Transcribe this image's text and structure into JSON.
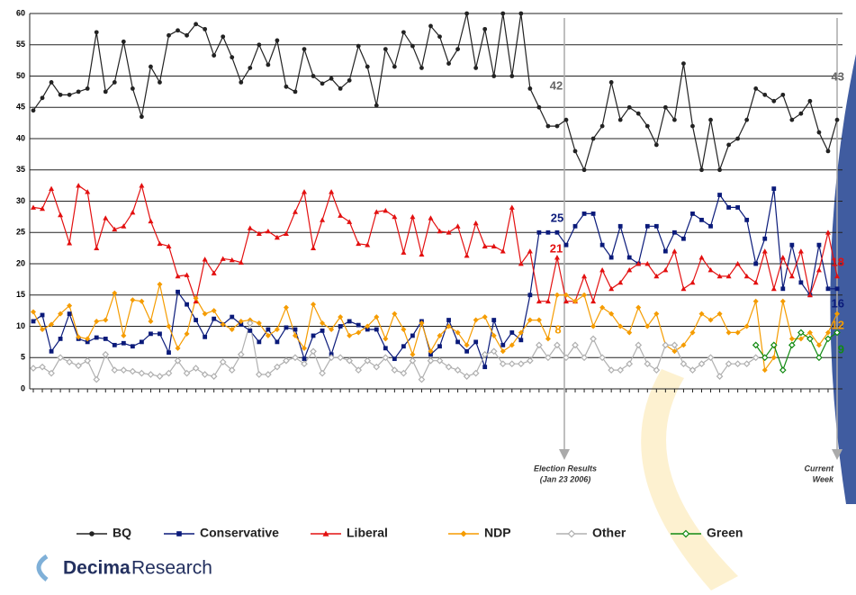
{
  "chart_data": {
    "type": "line",
    "categories": [
      null,
      null,
      null,
      null,
      null,
      null,
      null,
      null,
      null,
      null,
      null,
      null,
      null,
      null,
      null,
      null,
      null,
      null,
      null,
      null,
      null,
      null,
      null,
      null,
      null,
      null,
      null,
      null,
      null,
      null,
      null,
      null,
      null,
      null,
      null,
      null,
      null,
      null,
      null,
      null,
      null,
      null,
      null,
      null,
      null,
      null,
      null,
      null,
      null,
      null,
      null,
      null,
      null,
      null,
      null,
      null,
      null,
      null,
      null,
      null,
      null,
      null,
      null,
      null,
      null,
      null,
      null,
      null,
      null,
      null,
      null,
      null,
      null,
      null,
      null,
      null,
      null,
      null,
      null,
      null,
      null,
      null,
      null,
      null,
      null,
      null,
      null,
      null,
      null,
      null
    ],
    "ylim": [
      0,
      60
    ],
    "yticks": [
      0,
      5,
      10,
      15,
      20,
      25,
      30,
      35,
      40,
      45,
      50,
      55,
      60
    ],
    "grid": true,
    "series": [
      {
        "name": "BQ",
        "color": "#222222",
        "marker": "circle",
        "values": [
          44.5,
          46.5,
          49,
          47,
          47,
          47.5,
          48,
          57,
          47.5,
          49,
          55.5,
          48,
          43.5,
          51.5,
          49,
          56.5,
          57.3,
          56.5,
          58.3,
          57.5,
          53.3,
          56.3,
          53,
          49,
          51.3,
          55,
          51.8,
          55.7,
          48.3,
          47.5,
          54.3,
          50,
          48.8,
          49.6,
          48,
          49.3,
          54.8,
          51.5,
          45.3,
          54.3,
          51.5,
          57,
          54.8,
          51.3,
          58,
          56.3,
          52,
          54.3,
          60,
          51.3,
          57.5,
          50,
          60,
          50,
          60,
          48,
          45,
          42,
          42,
          43,
          38,
          35,
          40,
          42,
          49,
          43,
          45,
          44,
          42,
          39,
          45,
          43,
          52,
          42,
          35,
          43,
          35,
          39,
          40,
          43,
          48,
          47,
          46,
          47,
          43,
          44,
          46,
          41,
          38,
          43
        ]
      },
      {
        "name": "Conservative",
        "color": "#0a1a7a",
        "marker": "square",
        "values": [
          10.8,
          11.8,
          6,
          8,
          12,
          8,
          7.5,
          8.2,
          8,
          7,
          7.3,
          6.8,
          7.5,
          8.8,
          8.8,
          5.8,
          15.5,
          13.5,
          11,
          8.3,
          11.2,
          10.3,
          11.5,
          10.3,
          9.3,
          7.5,
          9.5,
          7.5,
          9.8,
          9.5,
          4.8,
          8.5,
          9.3,
          5.5,
          10,
          10.8,
          10.2,
          9.5,
          9.5,
          6.5,
          4.8,
          6.8,
          8.5,
          10.8,
          5.5,
          6.8,
          11,
          7.5,
          6,
          7.5,
          3.5,
          11,
          7,
          9,
          7.8,
          15,
          25,
          25,
          25,
          23,
          26,
          28,
          28,
          23,
          21,
          26,
          21,
          20,
          26,
          26,
          22,
          25,
          24,
          28,
          27,
          26,
          31,
          29,
          29,
          27,
          20,
          24,
          32,
          16,
          23,
          17,
          15,
          23,
          16,
          16
        ]
      },
      {
        "name": "Liberal",
        "color": "#e31010",
        "marker": "triangle",
        "values": [
          29,
          28.8,
          32,
          27.8,
          23.3,
          32.5,
          31.5,
          22.5,
          27.3,
          25.5,
          26,
          28.2,
          32.5,
          26.8,
          23.2,
          22.8,
          18,
          18.2,
          14,
          20.7,
          18.5,
          20.8,
          20.6,
          20.2,
          25.7,
          24.8,
          25.2,
          24.2,
          24.8,
          28.3,
          31.5,
          22.5,
          27,
          31.5,
          27.7,
          26.7,
          23.2,
          23,
          28.3,
          28.5,
          27.5,
          21.8,
          27.5,
          21.5,
          27.3,
          25.2,
          25,
          26,
          21.3,
          26.5,
          22.8,
          22.8,
          22,
          29,
          20,
          22,
          14,
          14,
          21,
          14,
          14,
          18,
          14,
          19,
          16,
          17,
          19,
          20,
          20,
          18,
          19,
          22,
          16,
          17,
          21,
          19,
          18,
          18,
          20,
          18,
          17,
          22,
          16,
          21,
          18,
          22,
          15,
          19,
          25,
          18
        ]
      },
      {
        "name": "NDP",
        "color": "#f59c00",
        "marker": "diamond",
        "values": [
          12.3,
          9.5,
          10.3,
          12,
          13.3,
          8.3,
          8,
          10.8,
          11,
          15.3,
          8.5,
          14.2,
          14,
          10.8,
          16.7,
          10,
          6.5,
          8.8,
          14.5,
          12,
          12.5,
          10.3,
          9.5,
          10.8,
          11,
          10.5,
          8.5,
          9.5,
          13,
          8.5,
          6.5,
          13.5,
          10.5,
          9.5,
          11.5,
          8.5,
          9,
          10,
          11.5,
          8,
          12,
          9.5,
          5.5,
          10.5,
          6,
          8.5,
          10,
          9,
          7,
          11,
          11.5,
          8.5,
          6,
          7,
          9,
          11,
          11,
          8,
          15,
          15,
          14,
          15,
          10,
          13,
          12,
          10,
          9,
          13,
          10,
          12,
          7,
          6,
          7,
          9,
          12,
          11,
          12,
          9,
          9,
          10,
          14,
          3,
          5,
          14,
          8,
          8,
          9,
          7,
          9,
          12
        ]
      },
      {
        "name": "Other",
        "color": "#b0b0b0",
        "marker": "open-diamond",
        "values": [
          3.3,
          3.5,
          2.5,
          5,
          4.3,
          3.7,
          4.5,
          1.5,
          5.5,
          3,
          3,
          2.8,
          2.5,
          2.3,
          2,
          2.5,
          4.5,
          2.5,
          3.3,
          2.3,
          2,
          4.3,
          3,
          5.5,
          10.5,
          2.3,
          2.3,
          3.5,
          4.5,
          5,
          4,
          6,
          2.5,
          5,
          5,
          4.5,
          3,
          4.5,
          3.5,
          5,
          3,
          2.5,
          4.5,
          1.5,
          4.5,
          4.5,
          3.5,
          3,
          2,
          2.5,
          5.5,
          6,
          4,
          4,
          4,
          4.5,
          7,
          5,
          7,
          5,
          7,
          5,
          8,
          5,
          3,
          3,
          4,
          7,
          4,
          3,
          7,
          7,
          4,
          3,
          4,
          5,
          2,
          4,
          4,
          4,
          5,
          null,
          null,
          null,
          null,
          null,
          null,
          null,
          null,
          null
        ]
      },
      {
        "name": "Green",
        "color": "#128a12",
        "marker": "open-diamond",
        "values": [
          null,
          null,
          null,
          null,
          null,
          null,
          null,
          null,
          null,
          null,
          null,
          null,
          null,
          null,
          null,
          null,
          null,
          null,
          null,
          null,
          null,
          null,
          null,
          null,
          null,
          null,
          null,
          null,
          null,
          null,
          null,
          null,
          null,
          null,
          null,
          null,
          null,
          null,
          null,
          null,
          null,
          null,
          null,
          null,
          null,
          null,
          null,
          null,
          null,
          null,
          null,
          null,
          null,
          null,
          null,
          null,
          null,
          null,
          null,
          null,
          null,
          null,
          null,
          null,
          null,
          null,
          null,
          null,
          null,
          null,
          null,
          null,
          null,
          null,
          null,
          null,
          null,
          null,
          null,
          null,
          7,
          5,
          7,
          3,
          7,
          9,
          8,
          5,
          8,
          9
        ]
      }
    ],
    "annotations": [
      {
        "text": "42"
      },
      {
        "text": "25"
      },
      {
        "text": "21"
      },
      {
        "text": "8"
      },
      {
        "text": "43"
      },
      {
        "text": "18"
      },
      {
        "text": "16"
      },
      {
        "text": "12"
      },
      {
        "text": "9"
      }
    ],
    "events": [
      {
        "lines": [
          "Election Results",
          "(Jan 23 2006)"
        ]
      },
      {
        "lines": [
          "Current",
          "Week"
        ]
      }
    ]
  },
  "brand": {
    "bold": "Decima",
    "light": "Research"
  }
}
